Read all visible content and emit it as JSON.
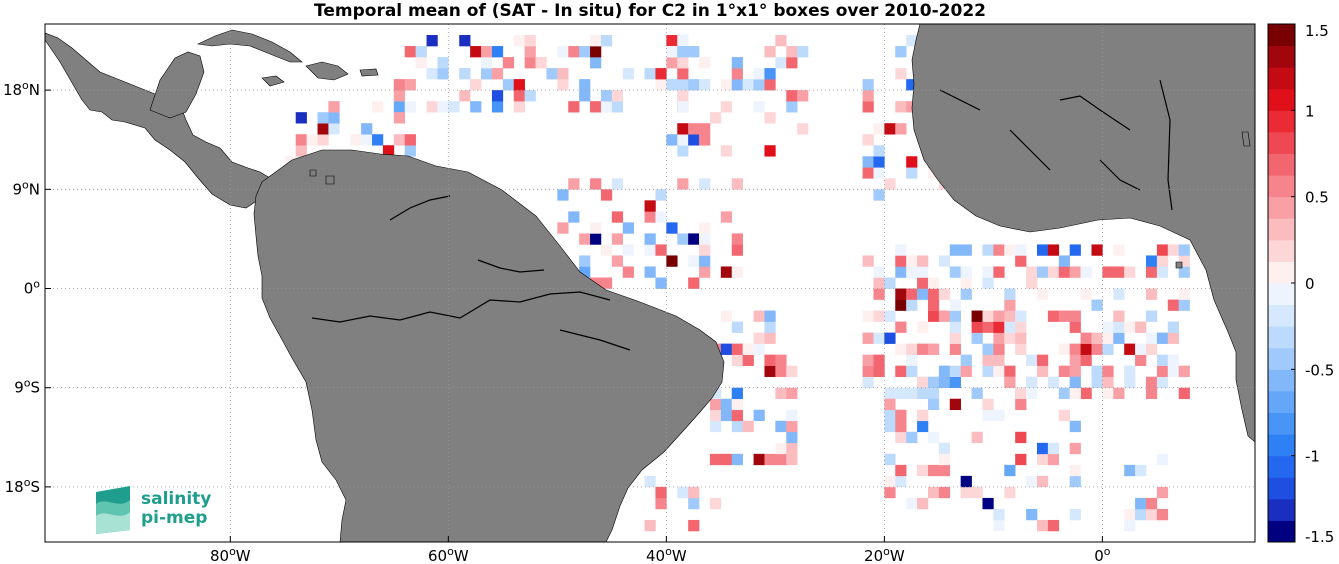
{
  "title": "Temporal mean of (SAT - In situ) for C2 in 1°x1° boxes over 2010-2022",
  "map": {
    "lon_range": [
      -97,
      14
    ],
    "lat_range": [
      -23,
      24
    ],
    "grid_lines": true,
    "land_color": "#808080",
    "ocean_color": "#ffffff",
    "lon_ticks": [
      {
        "value": -80,
        "label": "80"
      },
      {
        "value": -60,
        "label": "60"
      },
      {
        "value": -40,
        "label": "40"
      },
      {
        "value": -20,
        "label": "20"
      },
      {
        "value": 0,
        "label": "0"
      }
    ],
    "lon_suffix": "W",
    "lat_ticks": [
      {
        "value": 18,
        "label": "18",
        "hemi": "N"
      },
      {
        "value": 9,
        "label": "9",
        "hemi": "N"
      },
      {
        "value": 0,
        "label": "0",
        "hemi": ""
      },
      {
        "value": -9,
        "label": "9",
        "hemi": "S"
      },
      {
        "value": -18,
        "label": "18",
        "hemi": "S"
      }
    ],
    "degree_symbol": "o"
  },
  "colorbar": {
    "range": [
      -1.5,
      1.5
    ],
    "levels": 24,
    "ticks": [
      {
        "value": 1.5,
        "label": "1.5"
      },
      {
        "value": 1,
        "label": "1"
      },
      {
        "value": 0.5,
        "label": "0.5"
      },
      {
        "value": 0,
        "label": "0"
      },
      {
        "value": -0.5,
        "label": "-0.5"
      },
      {
        "value": -1,
        "label": "-1"
      },
      {
        "value": -1.5,
        "label": "-1.5"
      }
    ],
    "colors": [
      "#000080",
      "#1a2fbf",
      "#1f4fe0",
      "#2468f0",
      "#2f80f5",
      "#4894f7",
      "#64a6f8",
      "#82b8f9",
      "#a0cafb",
      "#bcdafc",
      "#d6e8fd",
      "#edf4fe",
      "#fff0f0",
      "#fdd6d8",
      "#fbbcc0",
      "#f9a0a6",
      "#f6848c",
      "#f26670",
      "#ee4852",
      "#ea2a34",
      "#e0101a",
      "#c40a12",
      "#a0060c",
      "#780000"
    ]
  },
  "logo": {
    "line1": "salinity",
    "line2": "pi-mep"
  }
}
